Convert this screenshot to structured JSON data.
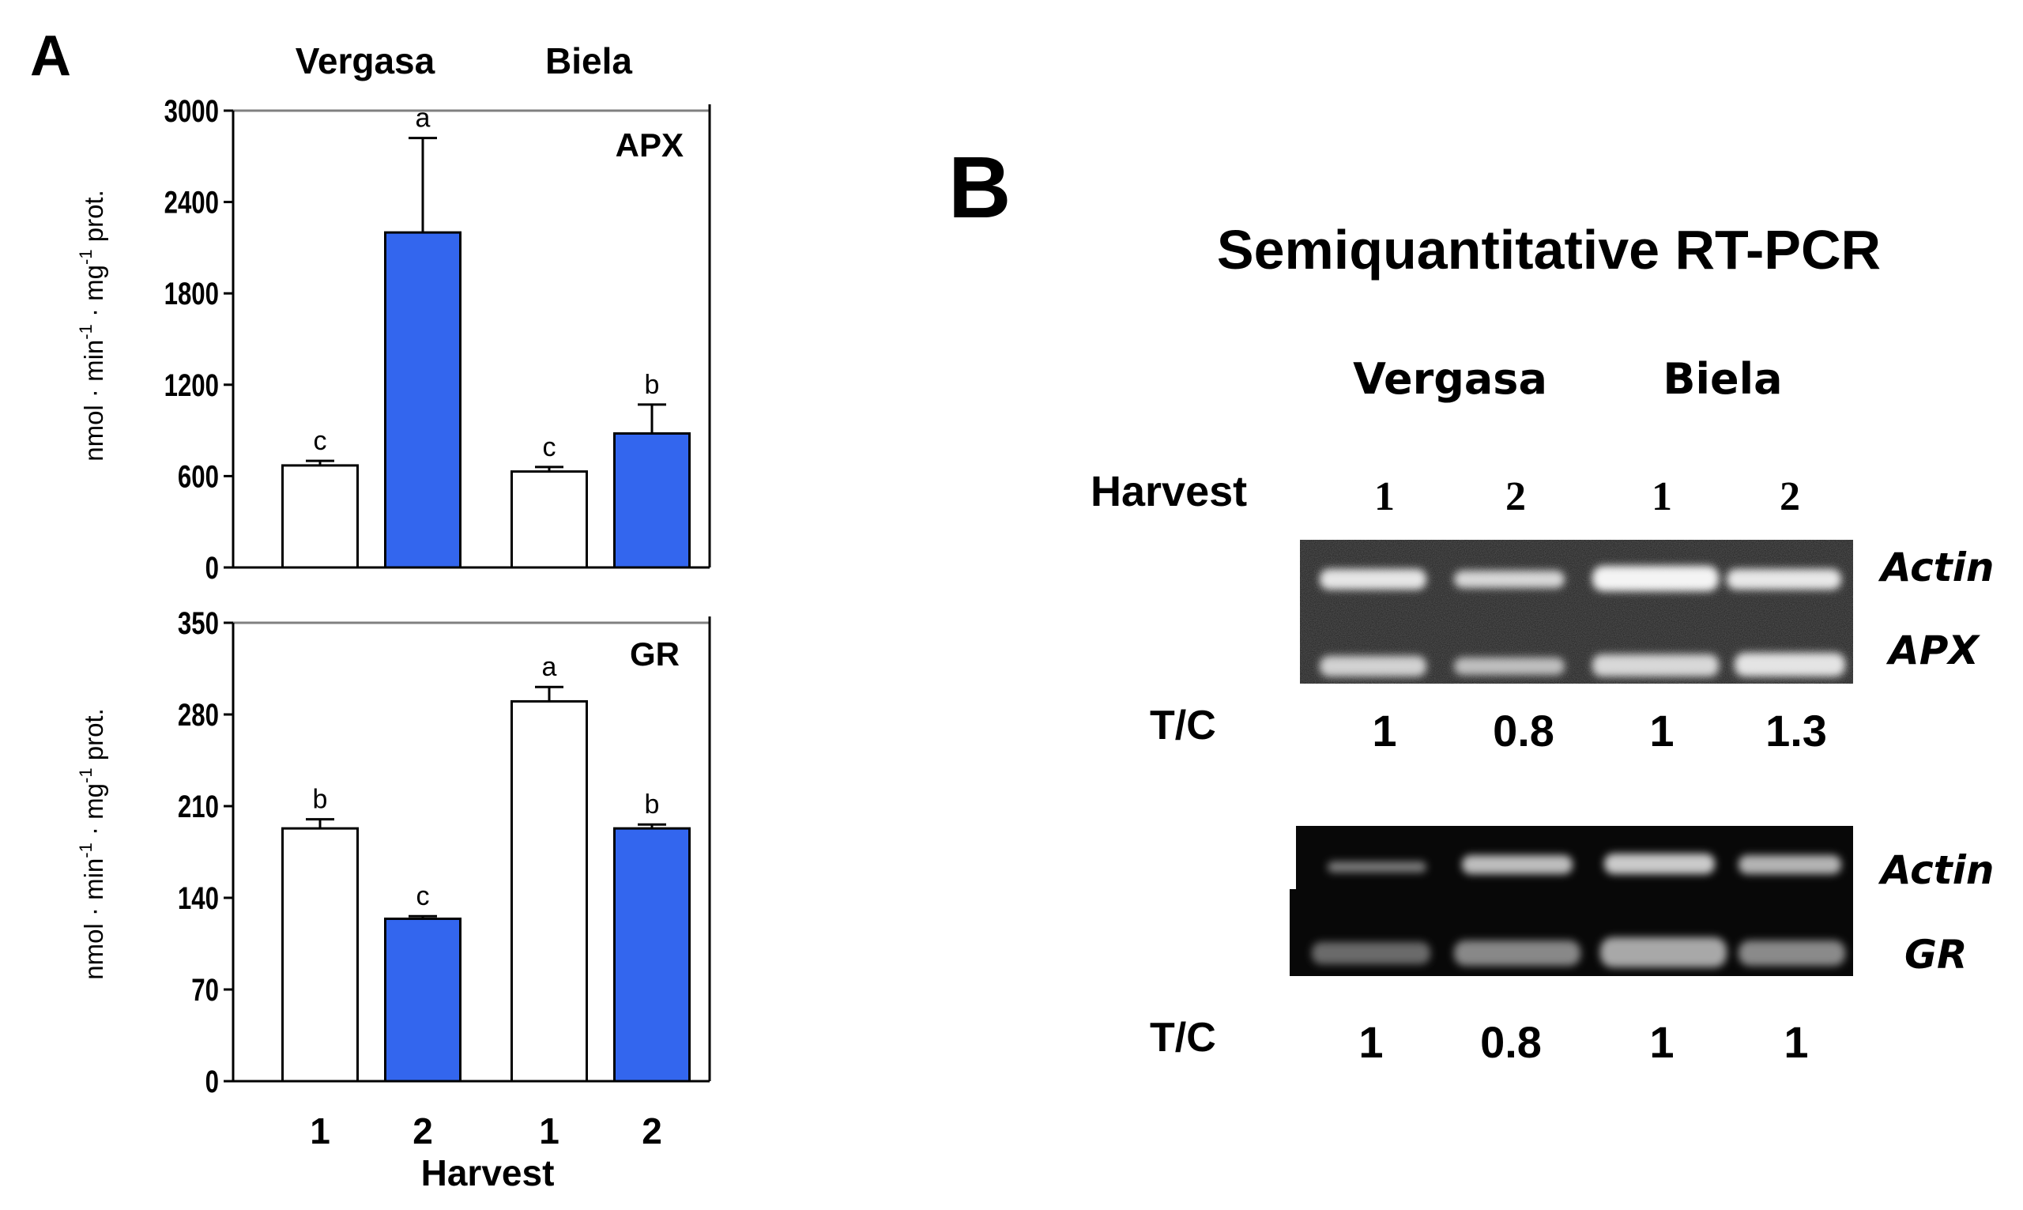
{
  "panel_a": {
    "letter": "A",
    "cultivar_labels": [
      "Vergasa",
      "Biela"
    ],
    "x_ticks": [
      "1",
      "2",
      "1",
      "2"
    ],
    "x_title": "Harvest"
  },
  "chart_data": [
    {
      "type": "bar",
      "title": "APX",
      "ylabel": "nmol · min-1 · mg-1 prot.",
      "ylabel_parts": [
        "nmol · min",
        "-1",
        " · mg",
        "-1",
        " prot."
      ],
      "xlabel": "Harvest",
      "categories": [
        "Vergasa 1",
        "Vergasa 2",
        "Biela 1",
        "Biela 2"
      ],
      "x_ticks": [
        "1",
        "2",
        "1",
        "2"
      ],
      "values": [
        670,
        2200,
        630,
        880
      ],
      "errors": [
        30,
        620,
        30,
        190
      ],
      "letters": [
        "c",
        "a",
        "c",
        "b"
      ],
      "fills": [
        "white",
        "blue",
        "white",
        "blue"
      ],
      "ylim": [
        0,
        3000
      ],
      "yticks": [
        0,
        600,
        1200,
        1800,
        2400,
        3000
      ]
    },
    {
      "type": "bar",
      "title": "GR",
      "ylabel": "nmol · min-1 · mg-1 prot.",
      "ylabel_parts": [
        "nmol · min",
        "-1",
        " · mg",
        "-1",
        " prot."
      ],
      "xlabel": "Harvest",
      "categories": [
        "Vergasa 1",
        "Vergasa 2",
        "Biela 1",
        "Biela 2"
      ],
      "x_ticks": [
        "1",
        "2",
        "1",
        "2"
      ],
      "values": [
        193,
        124,
        290,
        193
      ],
      "errors": [
        7,
        2,
        11,
        3
      ],
      "letters": [
        "b",
        "c",
        "a",
        "b"
      ],
      "fills": [
        "white",
        "blue",
        "white",
        "blue"
      ],
      "ylim": [
        0,
        350
      ],
      "yticks": [
        0,
        70,
        140,
        210,
        280,
        350
      ]
    }
  ],
  "panel_b": {
    "letter": "B",
    "title": "Semiquantitative RT-PCR",
    "cultivar_labels": [
      "Vergasa",
      "Biela"
    ],
    "harvest_label": "Harvest",
    "lanes": [
      "1",
      "2",
      "1",
      "2"
    ],
    "gels": [
      {
        "genes": [
          "Actin",
          "APX"
        ],
        "tc_label": "T/C",
        "tc_values": [
          "1",
          "0.8",
          "1",
          "1.3"
        ]
      },
      {
        "genes": [
          "Actin",
          "GR"
        ],
        "tc_label": "T/C",
        "tc_values": [
          "1",
          "0.8",
          "1",
          "1"
        ]
      }
    ]
  },
  "colors": {
    "blue_bar": "#3366ee",
    "white_bar": "#ffffff",
    "axis": "#808080",
    "gel": "#0c0c0c"
  }
}
